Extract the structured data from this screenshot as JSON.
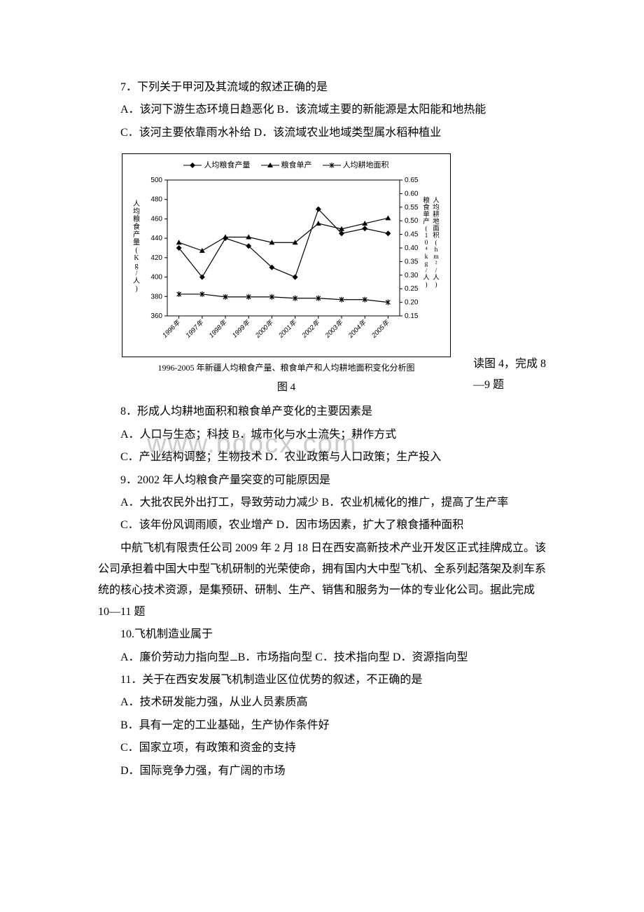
{
  "watermark": "www.bdocx.com",
  "q7": {
    "stem": "7．下列关于甲河及其流域的叙述正确的是",
    "optA": "A．该河下游生态环境日趋恶化 B．该流域主要的新能源是太阳能和地热能",
    "optCD": "C．该河主要依靠雨水补给 D．该流域农业地域类型属水稻种植业"
  },
  "chart": {
    "legend": {
      "s1": "人均粮食产量",
      "s2": "粮食单产",
      "s3": "人均耕地面积"
    },
    "y1_label": "人均粮食产量(Kg/人)",
    "y2a_label": "粮食单产(10⁴kg/人)",
    "y2b_label": "人均耕地面积(hm²/人)",
    "y1_ticks": [
      "360",
      "380",
      "400",
      "420",
      "440",
      "460",
      "480",
      "500"
    ],
    "y2_ticks": [
      "0.15",
      "0.20",
      "0.25",
      "0.30",
      "0.35",
      "0.40",
      "0.45",
      "0.50",
      "0.55",
      "0.60",
      "0.65"
    ],
    "x_years": [
      "1996年",
      "1997年",
      "1998年",
      "1999年",
      "2000年",
      "2001年",
      "2002年",
      "2003年",
      "2004年",
      "2005年"
    ],
    "series1_y": [
      430,
      400,
      440,
      432,
      410,
      400,
      470,
      445,
      450,
      445
    ],
    "series2_y": [
      0.42,
      0.39,
      0.44,
      0.44,
      0.42,
      0.42,
      0.49,
      0.47,
      0.49,
      0.51
    ],
    "series3_y": [
      0.23,
      0.23,
      0.22,
      0.22,
      0.22,
      0.215,
      0.215,
      0.21,
      0.21,
      0.2
    ],
    "colors": {
      "line": "#000000",
      "border": "#000000",
      "grid": "#000000",
      "bg": "#ffffff"
    },
    "caption": "1996-2005 年新疆人均粮食产量、粮食单产和人均耕地面积变化分析图",
    "fig_label": "图 4",
    "read_fig": "读图 4，完成 8—9 题"
  },
  "q8": {
    "stem": "8．形成人均耕地面积和粮食单产变化的主要因素是",
    "optA": "A．人口与生态；科技 B．城市化与水土流失；耕作方式",
    "optCD": "C．产业结构调整；生物技术 D．农业政策与人口政策；生产投入"
  },
  "q9": {
    "stem": "9．2002 年人均粮食产量突变的可能原因是",
    "optA": "A．大批农民外出打工，导致劳动力减少 B．农业机械化的推广，提高了生产率",
    "optCD": "C．该年份风调雨顺，农业增产 D．因市场因素，扩大了粮食播种面积"
  },
  "passage": "中航飞机有限责任公司 2009 年 2 月 18 日在西安高新技术产业开发区正式挂牌成立。该公司承担着中国大中型飞机研制的光荣使命，拥有国内大中型飞机、全系列起落架及刹车系统的核心技术资源，是集预研、研制、生产、销售和服务为一体的专业化公司。据此完成 10—11 题",
  "q10": {
    "stem": "10.飞机制造业属于",
    "opts_pre": "A．廉价劳动力指向型",
    "opts_post": "B．市场指向型 C．技术指向型 D．资源指向型"
  },
  "q11": {
    "stem": "11．关于在西安发展飞机制造业区位优势的叙述，不正确的是",
    "a": "A．技术研发能力强，从业人员素质高",
    "b": "B．具有一定的工业基础，生产协作条件好",
    "c": "C．国家立项，有政策和资金的支持",
    "d": "D．国际竞争力强，有广阔的市场"
  }
}
